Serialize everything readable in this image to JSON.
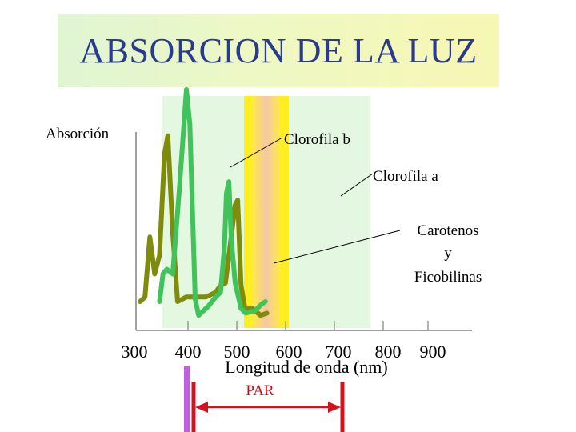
{
  "header": {
    "title": "ABSORCION DE LA LUZ"
  },
  "colors": {
    "chlorophyll_a": "#7f8c0b",
    "chlorophyll_b": "#3fc35a",
    "par": "#d2141e",
    "violet_marker": "#c060e0",
    "band_yellow": "#ffee22",
    "band_orange": "#f6cfa2",
    "band_green": "#e2f7df"
  },
  "chart_data": {
    "type": "line",
    "ylabel": "Absorción",
    "xlabel": "Longitud de onda (nm)",
    "x_tick_labels": [
      "300",
      "400",
      "500",
      "600",
      "700",
      "800",
      "900"
    ],
    "annotations": [
      {
        "id": "chl-b",
        "text": "Clorofila b"
      },
      {
        "id": "chl-a",
        "text": "Clorofila a"
      },
      {
        "id": "carot",
        "text": [
          "Carotenos",
          "y",
          "Ficobilinas"
        ]
      }
    ],
    "par_label": "PAR",
    "series": [
      {
        "name": "Clorofila a",
        "color": "#7f8c0b",
        "points": [
          [
            305,
            0.08
          ],
          [
            315,
            0.1
          ],
          [
            325,
            0.36
          ],
          [
            335,
            0.2
          ],
          [
            345,
            0.28
          ],
          [
            355,
            0.72
          ],
          [
            362,
            0.8
          ],
          [
            372,
            0.38
          ],
          [
            382,
            0.08
          ],
          [
            400,
            0.1
          ],
          [
            420,
            0.1
          ],
          [
            440,
            0.1
          ],
          [
            460,
            0.12
          ],
          [
            470,
            0.15
          ],
          [
            480,
            0.16
          ],
          [
            500,
            0.5
          ],
          [
            505,
            0.52
          ],
          [
            512,
            0.15
          ],
          [
            520,
            0.05
          ],
          [
            535,
            0.05
          ],
          [
            552,
            0.02
          ],
          [
            565,
            0.03
          ]
        ]
      },
      {
        "name": "Clorofila b",
        "color": "#3fc35a",
        "points": [
          [
            345,
            0.08
          ],
          [
            352,
            0.2
          ],
          [
            360,
            0.22
          ],
          [
            372,
            0.2
          ],
          [
            385,
            0.55
          ],
          [
            400,
            1.0
          ],
          [
            407,
            0.85
          ],
          [
            418,
            0.09
          ],
          [
            425,
            0.02
          ],
          [
            445,
            0.06
          ],
          [
            460,
            0.1
          ],
          [
            470,
            0.12
          ],
          [
            478,
            0.32
          ],
          [
            482,
            0.55
          ],
          [
            487,
            0.6
          ],
          [
            492,
            0.35
          ],
          [
            500,
            0.16
          ],
          [
            512,
            0.05
          ],
          [
            522,
            0.03
          ],
          [
            540,
            0.04
          ],
          [
            555,
            0.07
          ],
          [
            562,
            0.08
          ]
        ]
      }
    ]
  }
}
